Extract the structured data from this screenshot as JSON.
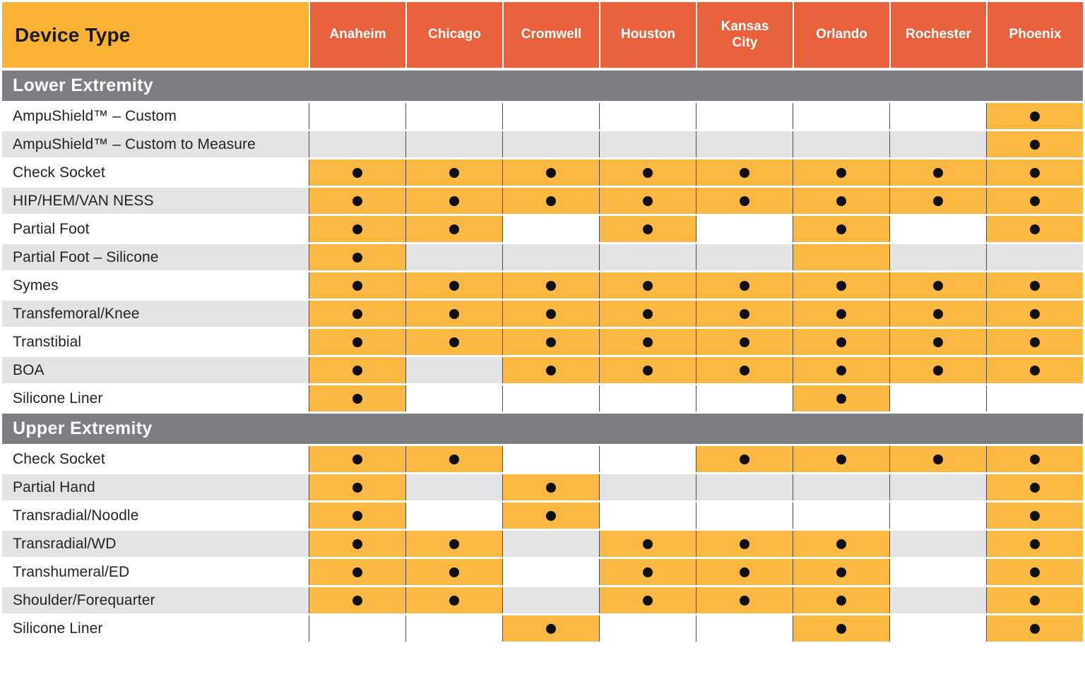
{
  "table": {
    "corner_header": "Device Type",
    "locations": [
      "Anaheim",
      "Chicago",
      "Cromwell",
      "Houston",
      "Kansas City",
      "Orlando",
      "Rochester",
      "Phoenix"
    ],
    "sections": [
      {
        "title": "Lower Extremity",
        "rows": [
          {
            "device": "AmpuShield™ – Custom",
            "cells": [
              "",
              "",
              "",
              "",
              "",
              "",
              "",
              "dot"
            ]
          },
          {
            "device": "AmpuShield™ – Custom to Measure",
            "cells": [
              "",
              "",
              "",
              "",
              "",
              "",
              "",
              "dot"
            ]
          },
          {
            "device": "Check Socket",
            "cells": [
              "dot",
              "dot",
              "dot",
              "dot",
              "dot",
              "dot",
              "dot",
              "dot"
            ]
          },
          {
            "device": "HIP/HEM/VAN NESS",
            "cells": [
              "dot",
              "dot",
              "dot",
              "dot",
              "dot",
              "dot",
              "dot",
              "dot"
            ]
          },
          {
            "device": "Partial Foot",
            "cells": [
              "dot",
              "dot",
              "",
              "dot",
              "",
              "dot",
              "",
              "dot"
            ]
          },
          {
            "device": "Partial Foot – Silicone",
            "cells": [
              "dot",
              "",
              "",
              "",
              "",
              "orange",
              "",
              ""
            ]
          },
          {
            "device": "Symes",
            "cells": [
              "dot",
              "dot",
              "dot",
              "dot",
              "dot",
              "dot",
              "dot",
              "dot"
            ]
          },
          {
            "device": "Transfemoral/Knee",
            "cells": [
              "dot",
              "dot",
              "dot",
              "dot",
              "dot",
              "dot",
              "dot",
              "dot"
            ]
          },
          {
            "device": "Transtibial",
            "cells": [
              "dot",
              "dot",
              "dot",
              "dot",
              "dot",
              "dot",
              "dot",
              "dot"
            ]
          },
          {
            "device": "BOA",
            "cells": [
              "dot",
              "",
              "dot",
              "dot",
              "dot",
              "dot",
              "dot",
              "dot"
            ]
          },
          {
            "device": "Silicone Liner",
            "cells": [
              "dot",
              "",
              "",
              "",
              "",
              "dot",
              "",
              ""
            ]
          }
        ]
      },
      {
        "title": "Upper Extremity",
        "rows": [
          {
            "device": "Check Socket",
            "cells": [
              "dot",
              "dot",
              "",
              "",
              "dot",
              "dot",
              "dot",
              "dot"
            ]
          },
          {
            "device": "Partial Hand",
            "cells": [
              "dot",
              "",
              "dot",
              "",
              "",
              "",
              "",
              "dot"
            ]
          },
          {
            "device": "Transradial/Noodle",
            "cells": [
              "dot",
              "",
              "dot",
              "",
              "",
              "",
              "",
              "dot"
            ]
          },
          {
            "device": "Transradial/WD",
            "cells": [
              "dot",
              "dot",
              "",
              "dot",
              "dot",
              "dot",
              "",
              "dot"
            ]
          },
          {
            "device": "Transhumeral/ED",
            "cells": [
              "dot",
              "dot",
              "",
              "dot",
              "dot",
              "dot",
              "",
              "dot"
            ]
          },
          {
            "device": "Shoulder/Forequarter",
            "cells": [
              "dot",
              "dot",
              "",
              "dot",
              "dot",
              "dot",
              "",
              "dot"
            ]
          },
          {
            "device": "Silicone Liner",
            "cells": [
              "",
              "",
              "dot",
              "",
              "",
              "dot",
              "",
              "dot"
            ]
          }
        ]
      }
    ],
    "cell_states_legend": {
      "dot": "available (orange cell with black dot)",
      "orange": "orange cell, no dot",
      "": "not available (plain striped cell)"
    },
    "colors": {
      "corner_header_bg": "#F9B233",
      "location_header_bg": "#E8613C",
      "available_cell_bg": "#FBB843",
      "section_bar_bg": "#7D7E81",
      "stripe_gray": "#E2E3E5",
      "grid_line": "#4D4D4F",
      "dot": "#111111"
    }
  }
}
